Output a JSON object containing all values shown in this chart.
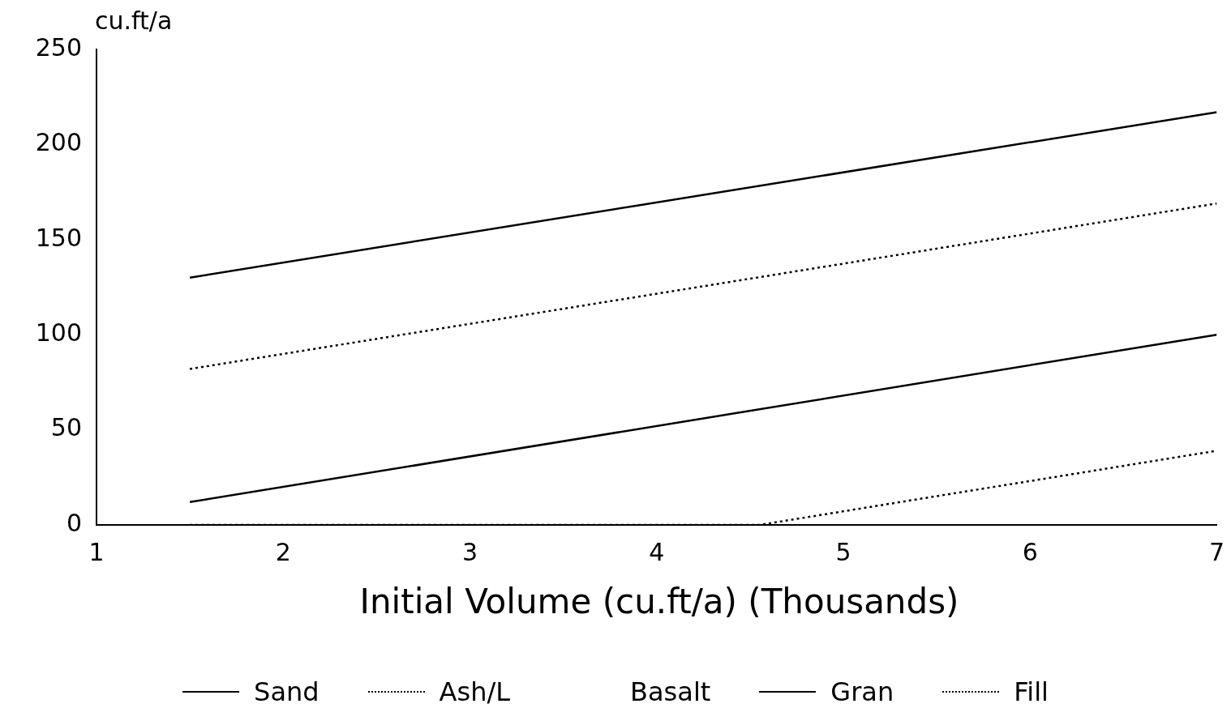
{
  "chart_data": {
    "type": "line",
    "xlabel": "Initial Volume (cu.ft/a) (Thousands)",
    "ylabel": "cu.ft/a",
    "xlim": [
      1,
      7
    ],
    "xticks": [
      1,
      2,
      3,
      4,
      5,
      6,
      7
    ],
    "ylim": [
      0,
      250
    ],
    "yticks": [
      0,
      50,
      100,
      150,
      200,
      250
    ],
    "grid": false,
    "legend": "bottom",
    "marker": "none",
    "series": [
      {
        "name": "Sand",
        "color": "#000000",
        "line_style": "solid",
        "x": [
          1.5,
          7
        ],
        "values": [
          130,
          217
        ]
      },
      {
        "name": "Ash/L",
        "color": "#000000",
        "line_style": "dotted",
        "x": [
          1.5,
          7
        ],
        "values": [
          82,
          169
        ]
      },
      {
        "name": "Basalt",
        "color": "#000000",
        "line_style": "none"
      },
      {
        "name": "Gran",
        "color": "#000000",
        "line_style": "solid",
        "x": [
          1.5,
          7
        ],
        "values": [
          12,
          100
        ]
      },
      {
        "name": "Fill",
        "color": "#000000",
        "line_style": "dotted",
        "x": [
          1.5,
          4.55,
          7
        ],
        "values": [
          0,
          0,
          39
        ]
      }
    ]
  }
}
